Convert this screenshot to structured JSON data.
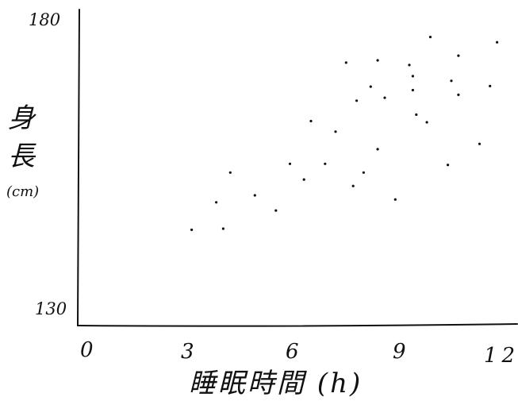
{
  "chart_data": {
    "type": "scatter",
    "title": "",
    "xlabel": "睡眠時間 (h)",
    "ylabel_chars": [
      "身",
      "長"
    ],
    "ylabel_unit": "(cm)",
    "xlim": [
      0,
      12
    ],
    "ylim": [
      130,
      180
    ],
    "x_ticks": [
      "0",
      "3",
      "6",
      "9",
      "12"
    ],
    "y_ticks": [
      "180",
      "130"
    ],
    "grid": false,
    "legend": "none",
    "points": [
      {
        "x": 3.2,
        "y": 143.8
      },
      {
        "x": 4.1,
        "y": 144.0
      },
      {
        "x": 3.9,
        "y": 148.5
      },
      {
        "x": 4.3,
        "y": 153.6
      },
      {
        "x": 5.0,
        "y": 149.7
      },
      {
        "x": 5.6,
        "y": 147.1
      },
      {
        "x": 6.0,
        "y": 155.1
      },
      {
        "x": 6.4,
        "y": 152.4
      },
      {
        "x": 6.6,
        "y": 162.4
      },
      {
        "x": 7.0,
        "y": 155.1
      },
      {
        "x": 7.3,
        "y": 160.6
      },
      {
        "x": 7.6,
        "y": 172.4
      },
      {
        "x": 7.8,
        "y": 151.3
      },
      {
        "x": 7.9,
        "y": 165.9
      },
      {
        "x": 8.1,
        "y": 153.6
      },
      {
        "x": 8.3,
        "y": 168.3
      },
      {
        "x": 8.5,
        "y": 172.8
      },
      {
        "x": 8.5,
        "y": 157.6
      },
      {
        "x": 8.7,
        "y": 166.4
      },
      {
        "x": 9.0,
        "y": 149.0
      },
      {
        "x": 9.4,
        "y": 172.0
      },
      {
        "x": 9.5,
        "y": 170.1
      },
      {
        "x": 9.5,
        "y": 167.7
      },
      {
        "x": 9.6,
        "y": 163.5
      },
      {
        "x": 9.9,
        "y": 162.2
      },
      {
        "x": 10.0,
        "y": 176.8
      },
      {
        "x": 10.5,
        "y": 154.9
      },
      {
        "x": 10.6,
        "y": 169.3
      },
      {
        "x": 10.8,
        "y": 173.6
      },
      {
        "x": 10.8,
        "y": 166.9
      },
      {
        "x": 11.4,
        "y": 158.5
      },
      {
        "x": 11.7,
        "y": 168.4
      },
      {
        "x": 11.9,
        "y": 175.9
      }
    ]
  }
}
